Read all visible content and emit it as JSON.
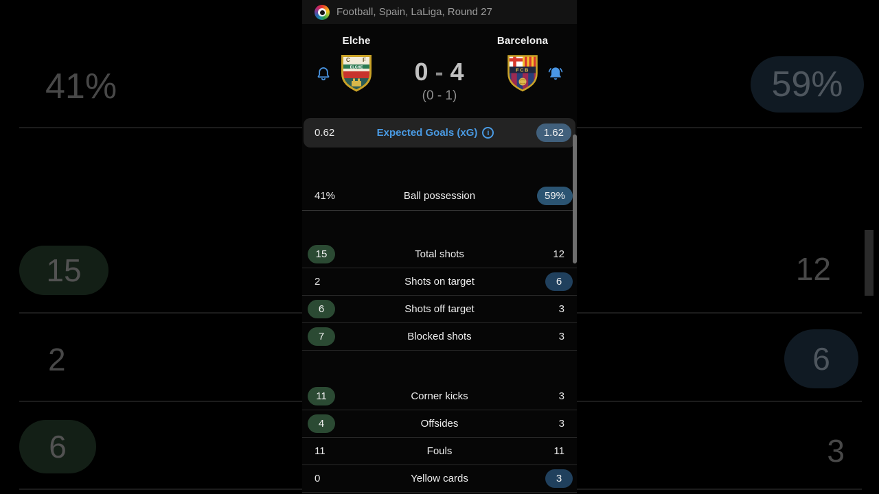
{
  "header": {
    "category": "Football, Spain, LaLiga, Round 27",
    "league_logo": "laliga-logo-icon"
  },
  "match": {
    "home": {
      "name": "Elche",
      "crest": "elche-crest-icon",
      "bell": "notification-bell-outline-icon"
    },
    "away": {
      "name": "Barcelona",
      "crest": "barcelona-crest-icon",
      "bell": "notification-bell-filled-icon"
    },
    "score": {
      "home": "0",
      "separator": "-",
      "away": "4"
    },
    "halftime_score": "(0 - 1)"
  },
  "stats": {
    "xg": {
      "home": "0.62",
      "label": "Expected Goals (xG)",
      "away": "1.62",
      "info_icon": "info-icon",
      "away_style": "pill-steel"
    },
    "groups": [
      {
        "id": "possession",
        "rows": [
          {
            "label": "Ball possession",
            "home": "41%",
            "away": "59%",
            "home_style": "plain",
            "away_style": "pill-possession"
          }
        ]
      },
      {
        "id": "shots",
        "rows": [
          {
            "label": "Total shots",
            "home": "15",
            "away": "12",
            "home_style": "pill-green",
            "away_style": "plain"
          },
          {
            "label": "Shots on target",
            "home": "2",
            "away": "6",
            "home_style": "plain",
            "away_style": "pill-blue"
          },
          {
            "label": "Shots off target",
            "home": "6",
            "away": "3",
            "home_style": "pill-green",
            "away_style": "plain"
          },
          {
            "label": "Blocked shots",
            "home": "7",
            "away": "3",
            "home_style": "pill-green",
            "away_style": "plain"
          }
        ]
      },
      {
        "id": "other",
        "rows": [
          {
            "label": "Corner kicks",
            "home": "11",
            "away": "3",
            "home_style": "pill-green",
            "away_style": "plain"
          },
          {
            "label": "Offsides",
            "home": "4",
            "away": "3",
            "home_style": "pill-green",
            "away_style": "plain"
          },
          {
            "label": "Fouls",
            "home": "11",
            "away": "11",
            "home_style": "plain",
            "away_style": "plain"
          },
          {
            "label": "Yellow cards",
            "home": "0",
            "away": "3",
            "home_style": "plain",
            "away_style": "pill-blue"
          }
        ]
      }
    ]
  },
  "backdrop": {
    "left": {
      "possession": "41%",
      "total_shots": "15",
      "shots_on_target": "2",
      "shots_off_target": "6"
    },
    "right": {
      "possession": "59%",
      "total_shots": "12",
      "shots_on_target": "6",
      "shots_off_target": "3"
    }
  },
  "colors": {
    "accent_blue": "#4a9be4",
    "bell_blue": "#4a97e6",
    "pill_green": "#2b4a33",
    "pill_blue": "#20405d",
    "pill_possession": "#2b5472",
    "pill_steel": "#41607c",
    "card_bg": "#232323",
    "page_bg": "#000000"
  }
}
